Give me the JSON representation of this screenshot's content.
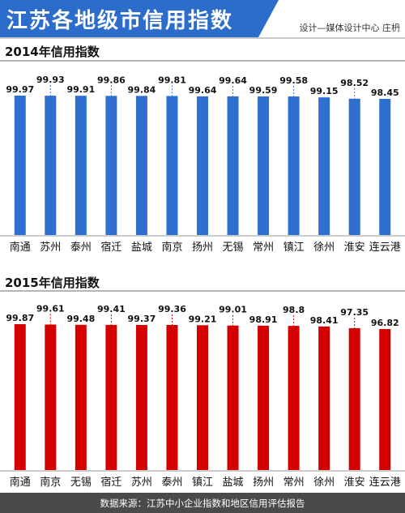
{
  "header": {
    "title": "江苏各地级市信用指数",
    "credit": "设计—媒体设计中心 庄枬"
  },
  "footer": {
    "source": "数据来源：江苏中小企业指数和地区信用评估报告"
  },
  "colors": {
    "banner": "#2c6dcc",
    "series_2014": "#2e6fcf",
    "series_2015": "#d40000",
    "footer": "#4a4a4a"
  },
  "chart_data": [
    {
      "type": "bar",
      "title": "2014年信用指数",
      "categories": [
        "南通",
        "苏州",
        "泰州",
        "宿迁",
        "盐城",
        "南京",
        "扬州",
        "无锡",
        "常州",
        "镇江",
        "徐州",
        "淮安",
        "连云港"
      ],
      "values": [
        99.97,
        99.93,
        99.91,
        99.86,
        99.84,
        99.81,
        99.64,
        99.64,
        99.59,
        99.58,
        99.15,
        98.52,
        98.45
      ],
      "value_labels": [
        "99.97",
        "99.93",
        "99.91",
        "99.86",
        "99.84",
        "99.81",
        "99.64",
        "99.64",
        "99.59",
        "99.58",
        "99.15",
        "98.52",
        "98.45"
      ],
      "color": "#2e6fcf",
      "xlabel": "",
      "ylabel": "",
      "grid": false,
      "legend": "none"
    },
    {
      "type": "bar",
      "title": "2015年信用指数",
      "categories": [
        "南通",
        "南京",
        "无锡",
        "宿迁",
        "苏州",
        "泰州",
        "镇江",
        "盐城",
        "扬州",
        "常州",
        "徐州",
        "淮安",
        "连云港"
      ],
      "values": [
        99.87,
        99.61,
        99.48,
        99.41,
        99.37,
        99.36,
        99.21,
        99.01,
        98.91,
        98.8,
        98.41,
        97.35,
        96.82
      ],
      "value_labels": [
        "99.87",
        "99.61",
        "99.48",
        "99.41",
        "99.37",
        "99.36",
        "99.21",
        "99.01",
        "98.91",
        "98.8",
        "98.41",
        "97.35",
        "96.82"
      ],
      "color": "#d40000",
      "xlabel": "",
      "ylabel": "",
      "grid": false,
      "legend": "none"
    }
  ]
}
